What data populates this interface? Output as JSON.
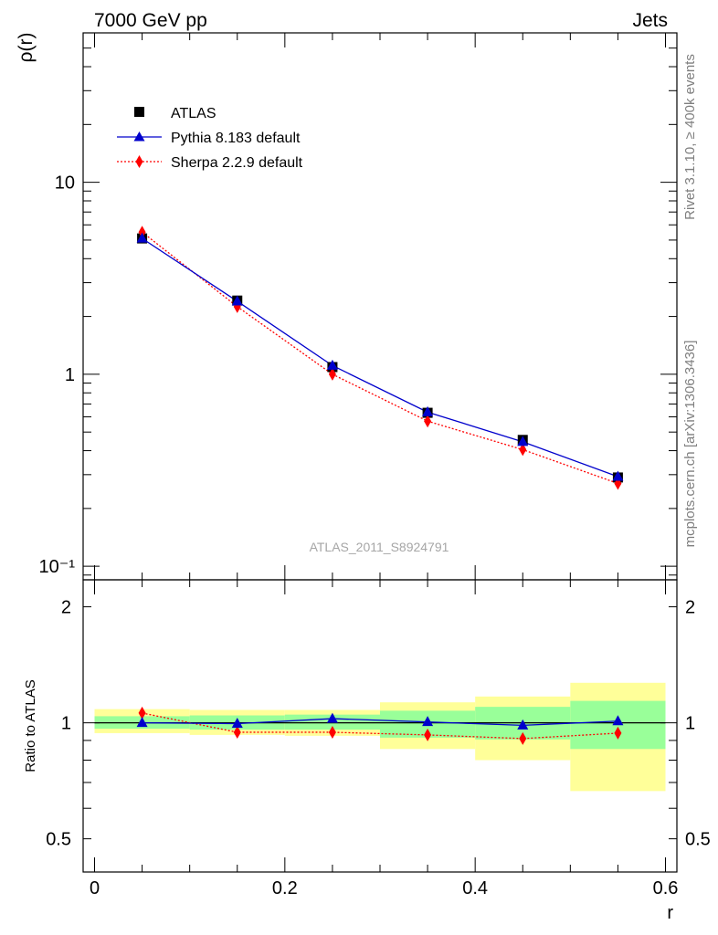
{
  "header": {
    "left": "7000 GeV pp",
    "right": "Jets"
  },
  "side_labels": {
    "rivet": "Rivet 3.1.10, ≥ 400k events",
    "source": "mcplots.cern.ch [arXiv:1306.3436]"
  },
  "analysis_id": "ATLAS_2011_S8924791",
  "colors": {
    "data": "#000000",
    "pythia": "#0000cc",
    "sherpa": "#ff0000",
    "band_outer": "#ffff99",
    "band_inner": "#99ff99"
  },
  "chart_data": [
    {
      "type": "line",
      "title": "",
      "xlabel": "r",
      "ylabel": "ρ(r)",
      "yscale": "log",
      "xlim": [
        -0.012,
        0.612
      ],
      "ylim": [
        0.085,
        60
      ],
      "yticks": [
        {
          "value": 10,
          "label": "10"
        },
        {
          "value": 1,
          "label": "1"
        },
        {
          "value": 0.1,
          "label": "10⁻¹"
        }
      ],
      "x": [
        0.05,
        0.15,
        0.25,
        0.35,
        0.45,
        0.55
      ],
      "legend_position": "top-left",
      "series": [
        {
          "name": "ATLAS",
          "marker": "square",
          "values": [
            5.1,
            2.42,
            1.09,
            0.63,
            0.455,
            0.29
          ]
        },
        {
          "name": "Pythia 8.183 default",
          "marker": "triangle",
          "line": "solid",
          "values": [
            5.1,
            2.4,
            1.11,
            0.635,
            0.445,
            0.293
          ]
        },
        {
          "name": "Sherpa 2.2.9 default",
          "marker": "diamond",
          "line": "dotted",
          "values": [
            5.5,
            2.25,
            1.0,
            0.57,
            0.405,
            0.27
          ]
        }
      ]
    },
    {
      "type": "line",
      "xlabel": "r",
      "ylabel": "Ratio to ATLAS",
      "yscale": "log",
      "xlim": [
        -0.012,
        0.612
      ],
      "ylim": [
        0.41,
        2.35
      ],
      "yticks": [
        {
          "value": 2,
          "label": "2"
        },
        {
          "value": 1,
          "label": "1"
        },
        {
          "value": 0.5,
          "label": "0.5"
        }
      ],
      "xticks": [
        {
          "value": 0,
          "label": "0"
        },
        {
          "value": 0.2,
          "label": "0.2"
        },
        {
          "value": 0.4,
          "label": "0.4"
        },
        {
          "value": 0.6,
          "label": "0.6"
        }
      ],
      "bins": [
        [
          0.0,
          0.1
        ],
        [
          0.1,
          0.2
        ],
        [
          0.2,
          0.3
        ],
        [
          0.3,
          0.4
        ],
        [
          0.4,
          0.5
        ],
        [
          0.5,
          0.6
        ]
      ],
      "band_outer": [
        [
          0.94,
          1.085
        ],
        [
          0.93,
          1.08
        ],
        [
          0.925,
          1.08
        ],
        [
          0.855,
          1.13
        ],
        [
          0.8,
          1.17
        ],
        [
          0.665,
          1.27
        ]
      ],
      "band_inner": [
        [
          0.965,
          1.04
        ],
        [
          0.96,
          1.045
        ],
        [
          0.96,
          1.05
        ],
        [
          0.915,
          1.075
        ],
        [
          0.905,
          1.1
        ],
        [
          0.855,
          1.14
        ]
      ],
      "x": [
        0.05,
        0.15,
        0.25,
        0.35,
        0.45,
        0.55
      ],
      "series": [
        {
          "name": "Pythia 8.183 default",
          "values": [
            1.0,
            0.995,
            1.025,
            1.005,
            0.985,
            1.01
          ]
        },
        {
          "name": "Sherpa 2.2.9 default",
          "values": [
            1.06,
            0.945,
            0.945,
            0.93,
            0.91,
            0.94
          ]
        }
      ]
    }
  ]
}
